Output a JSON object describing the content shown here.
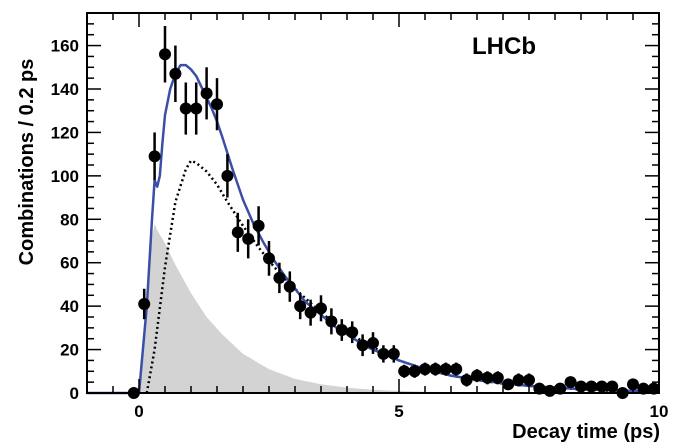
{
  "chart_data": {
    "type": "scatter",
    "title": "",
    "annotation": "LHCb",
    "xlabel": "Decay time (ps)",
    "ylabel": "Combinations / 0.2 ps",
    "xlim": [
      -1,
      10
    ],
    "ylim": [
      0,
      175
    ],
    "x_ticks": [
      0,
      5,
      10
    ],
    "y_ticks": [
      0,
      20,
      40,
      60,
      80,
      100,
      120,
      140,
      160
    ],
    "grid": false,
    "legend": "none",
    "colors": {
      "fit": "#3b4fa8",
      "background_fill": "#d3d3d3",
      "signal_line": "#000000",
      "points": "#000000"
    },
    "series": [
      {
        "type": "scatter_errorbars",
        "x": [
          -0.1,
          0.1,
          0.3,
          0.5,
          0.7,
          0.9,
          1.1,
          1.3,
          1.5,
          1.7,
          1.9,
          2.1,
          2.3,
          2.5,
          2.7,
          2.9,
          3.1,
          3.3,
          3.5,
          3.7,
          3.9,
          4.1,
          4.3,
          4.5,
          4.7,
          4.9,
          5.1,
          5.3,
          5.5,
          5.7,
          5.9,
          6.1,
          6.3,
          6.5,
          6.7,
          6.9,
          7.1,
          7.3,
          7.5,
          7.7,
          7.9,
          8.1,
          8.3,
          8.5,
          8.7,
          8.9,
          9.1,
          9.3,
          9.5,
          9.7,
          9.9
        ],
        "y": [
          0,
          41,
          109,
          156,
          147,
          131,
          131,
          138,
          133,
          100,
          74,
          71,
          77,
          62,
          53,
          49,
          40,
          37,
          39,
          33,
          29,
          28,
          22,
          23,
          18,
          18,
          10,
          10,
          11,
          11,
          11,
          11,
          6,
          8,
          7,
          7,
          4,
          6,
          6,
          2,
          1,
          2,
          5,
          3,
          3,
          3,
          3,
          0,
          4,
          2,
          2
        ],
        "err": [
          1,
          7,
          11,
          13,
          13,
          12,
          12,
          12,
          12,
          10,
          9,
          9,
          9,
          8,
          7,
          7,
          6,
          6,
          6,
          6,
          5,
          5,
          5,
          5,
          4,
          4,
          3,
          3,
          3,
          3,
          3,
          3,
          3,
          3,
          3,
          3,
          2,
          3,
          3,
          2,
          1,
          2,
          2,
          2,
          2,
          2,
          2,
          1,
          2,
          2,
          2
        ]
      },
      {
        "type": "line",
        "style": "solid",
        "x": [
          -1.0,
          0.0,
          0.15,
          0.25,
          0.3,
          0.35,
          0.4,
          0.45,
          0.5,
          0.6,
          0.7,
          0.8,
          0.9,
          1.0,
          1.1,
          1.2,
          1.3,
          1.4,
          1.5,
          1.6,
          1.8,
          2.0,
          2.2,
          2.4,
          2.6,
          2.8,
          3.0,
          3.2,
          3.4,
          3.6,
          3.8,
          4.0,
          4.2,
          4.4,
          4.6,
          4.8,
          5.0,
          5.5,
          6.0,
          6.5,
          7.0,
          7.5,
          8.0,
          8.5,
          9.0,
          9.5,
          10.0
        ],
        "y": [
          0,
          0,
          40,
          80,
          98,
          95,
          100,
          115,
          128,
          140,
          147,
          151,
          151,
          149,
          146,
          141,
          136,
          131,
          125,
          118,
          103,
          89,
          78,
          69,
          61,
          54,
          48,
          42,
          38,
          34,
          30,
          27,
          24,
          21,
          19,
          17,
          15,
          11,
          8,
          6,
          4.5,
          3.3,
          2.5,
          1.8,
          1.4,
          1.0,
          0.7
        ]
      },
      {
        "type": "line",
        "style": "dotted",
        "x": [
          0.15,
          0.3,
          0.5,
          0.7,
          0.9,
          1.0,
          1.1,
          1.3,
          1.5,
          1.7,
          2.0,
          2.3,
          2.6,
          3.0,
          3.5,
          4.0,
          4.5,
          5.0,
          5.5,
          6.0,
          6.5,
          7.0,
          8.0,
          9.0,
          10.0
        ],
        "y": [
          0,
          20,
          58,
          88,
          103,
          107,
          106,
          102,
          96,
          88,
          77,
          67,
          58,
          48,
          37,
          28,
          21,
          15,
          11,
          8,
          6,
          4.3,
          2.3,
          1.2,
          0.6
        ]
      },
      {
        "type": "area",
        "x": [
          0.0,
          0.15,
          0.2,
          0.25,
          0.3,
          0.35,
          0.4,
          0.5,
          0.7,
          1.0,
          1.3,
          1.6,
          2.0,
          2.5,
          3.0,
          3.5,
          4.0,
          4.5,
          5.0,
          5.5,
          6.0,
          7.0,
          8.0,
          9.0,
          10.0
        ],
        "y": [
          0,
          40,
          60,
          72,
          78,
          75,
          73,
          69,
          59,
          46,
          35,
          27,
          18,
          11,
          6.5,
          4,
          2.5,
          1.5,
          1,
          0.6,
          0.4,
          0.1,
          0,
          0,
          0
        ]
      }
    ]
  }
}
